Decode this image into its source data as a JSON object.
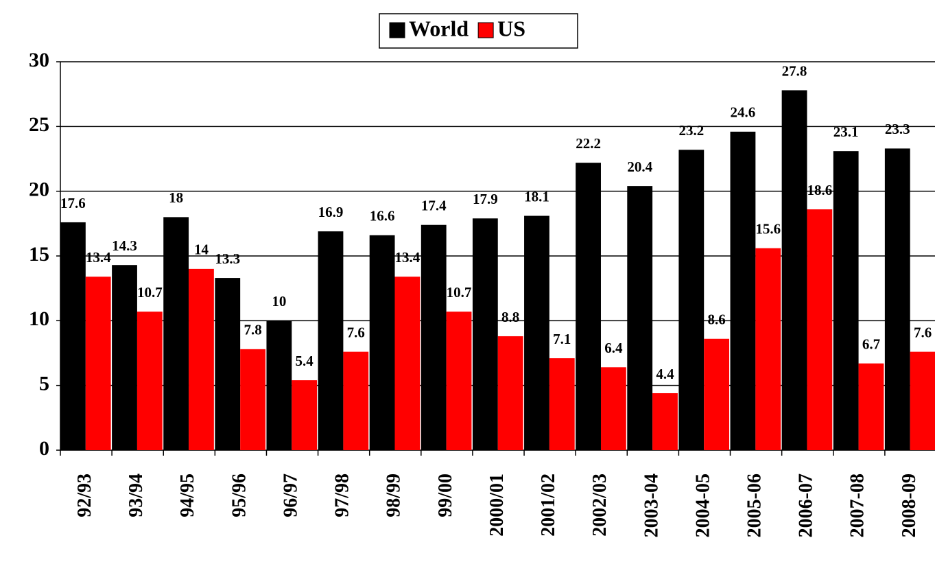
{
  "chart_data": {
    "type": "bar",
    "categories": [
      "92/93",
      "93/94",
      "94/95",
      "95/96",
      "96/97",
      "97/98",
      "98/99",
      "99/00",
      "2000/01",
      "2001/02",
      "2002/03",
      "2003-04",
      "2004-05",
      "2005-06",
      "2006-07",
      "2007-08",
      "2008-09"
    ],
    "series": [
      {
        "name": "World",
        "color": "#000000",
        "values": [
          17.6,
          14.3,
          18,
          13.3,
          10,
          16.9,
          16.6,
          17.4,
          17.9,
          18.1,
          22.2,
          20.4,
          23.2,
          24.6,
          27.8,
          23.1,
          23.3
        ]
      },
      {
        "name": "US",
        "color": "#ff0000",
        "values": [
          13.4,
          10.7,
          14,
          7.8,
          5.4,
          7.6,
          13.4,
          10.7,
          8.8,
          7.1,
          6.4,
          4.4,
          8.6,
          15.6,
          18.6,
          6.7,
          7.6
        ]
      }
    ],
    "ylim": [
      0,
      30
    ],
    "yticks": [
      0,
      5,
      10,
      15,
      20,
      25,
      30
    ],
    "grid": true,
    "legend": "top"
  }
}
